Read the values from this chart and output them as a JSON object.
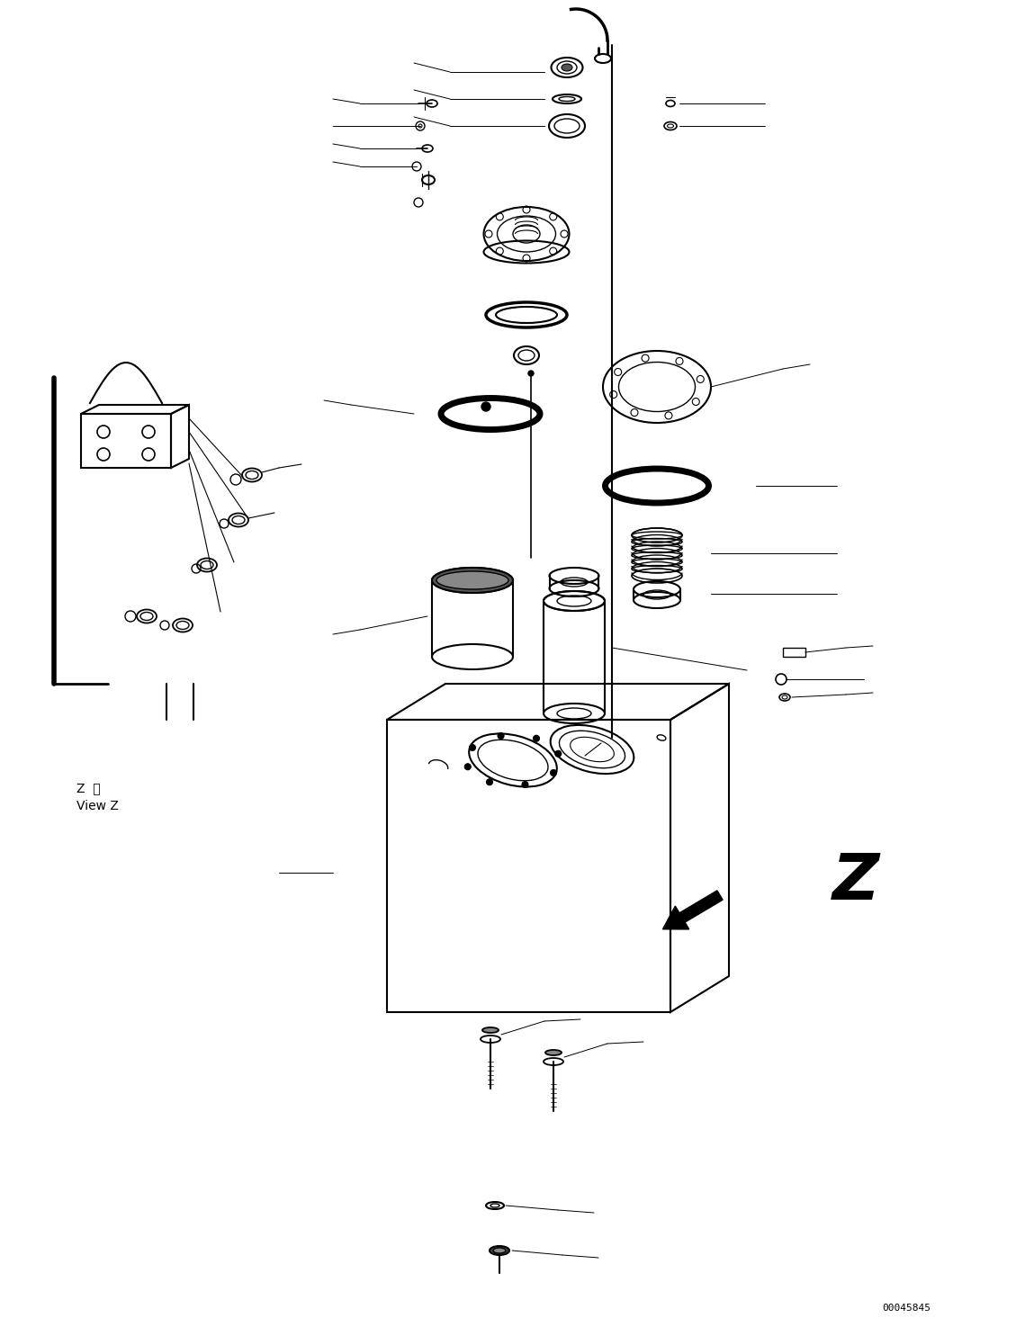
{
  "background_color": "#ffffff",
  "line_color": "#000000",
  "diagram_id": "00045845",
  "view_label_1": "Z  視",
  "view_label_2": "View Z",
  "arrow_Z_label": "Z"
}
